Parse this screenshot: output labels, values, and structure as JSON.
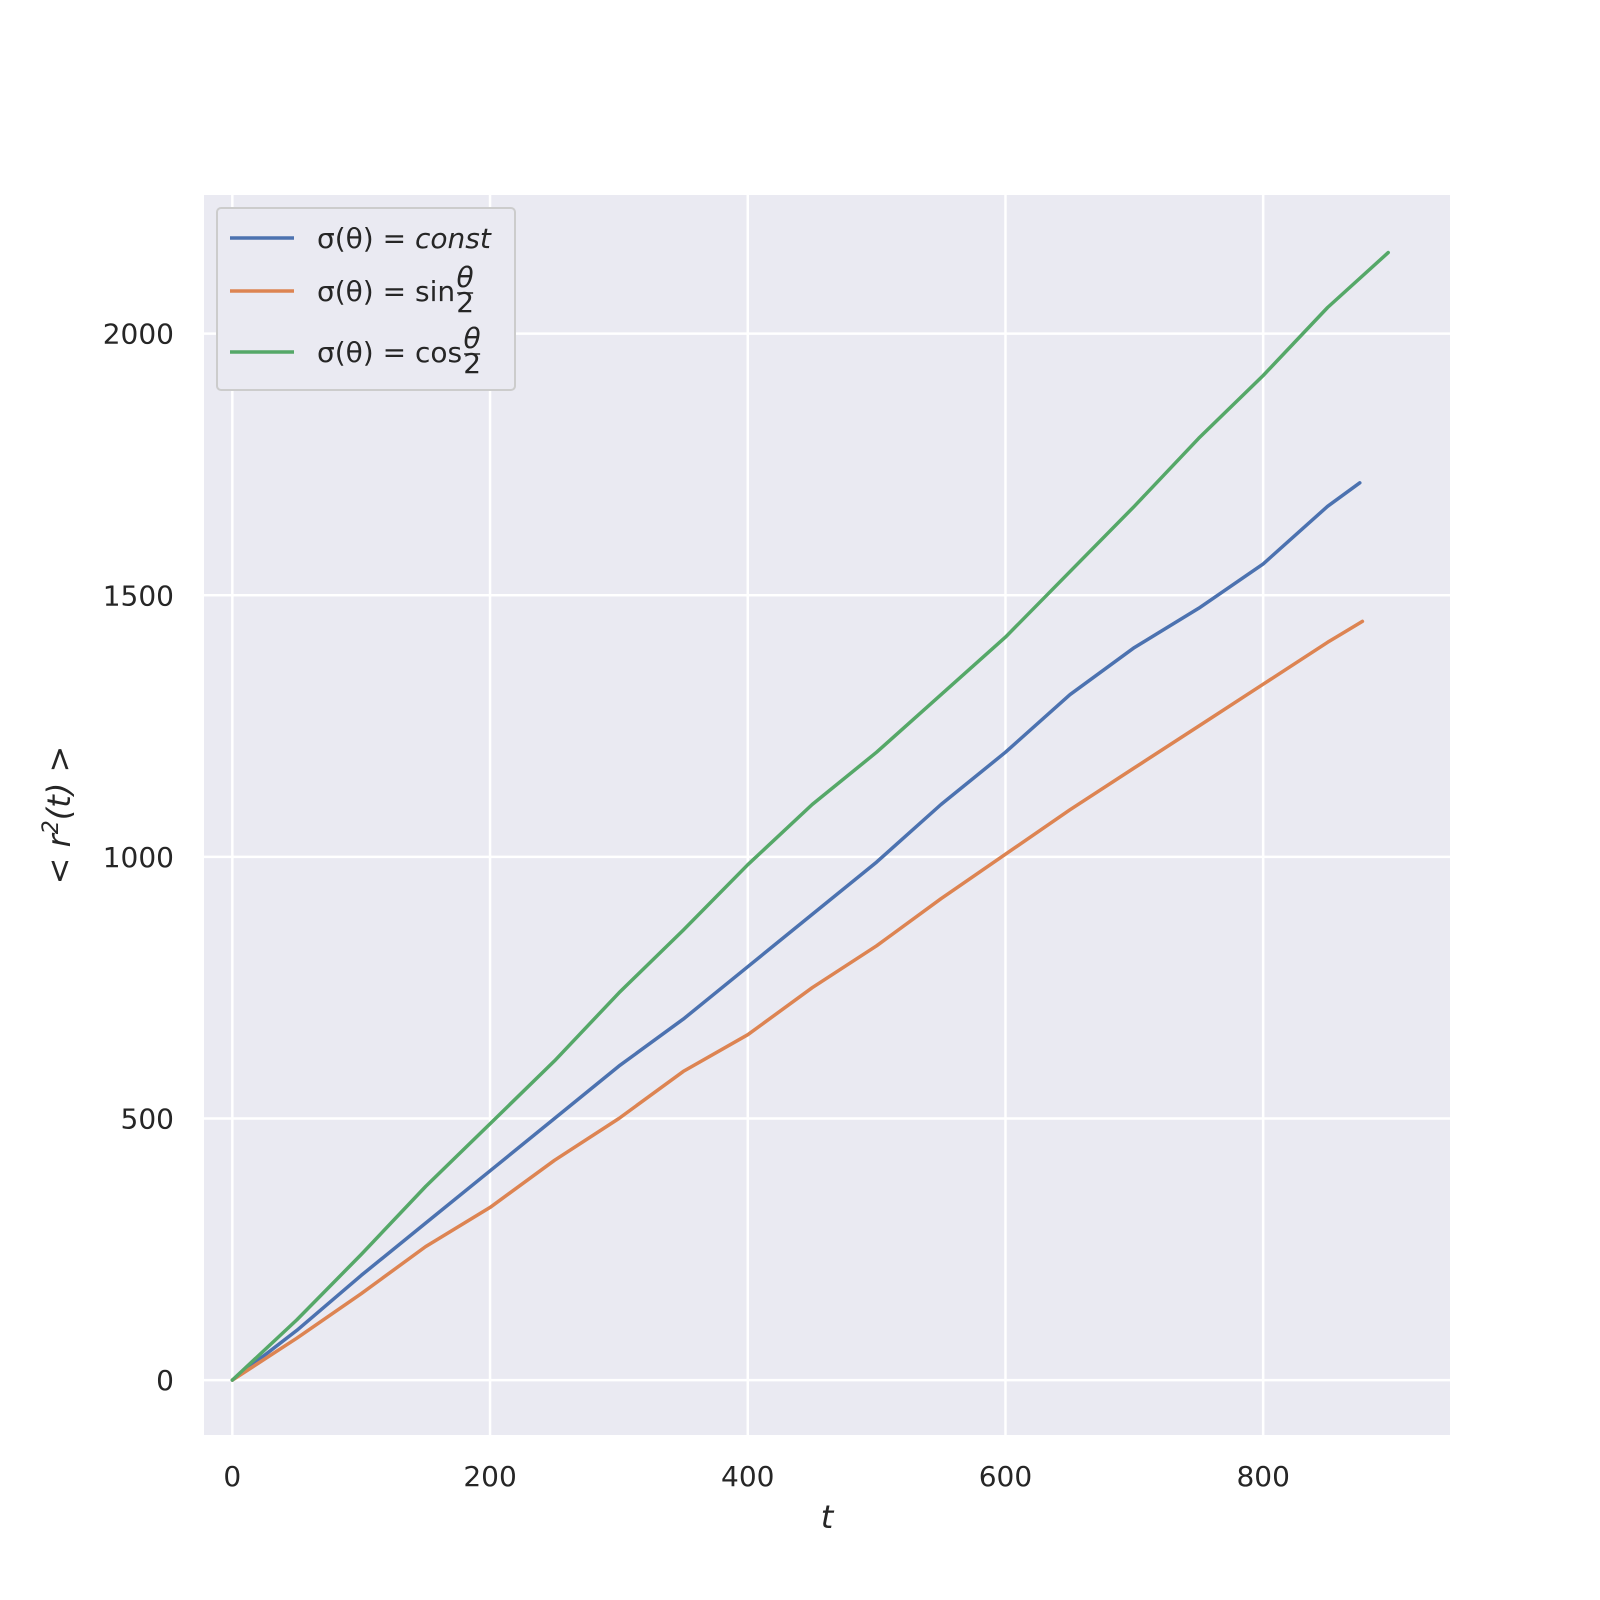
{
  "chart_data": {
    "type": "line",
    "xlabel": "t",
    "ylabel": "< r²(t) >",
    "title": "",
    "xlim": [
      -22,
      945
    ],
    "ylim": [
      -105,
      2265
    ],
    "xticks": [
      0,
      200,
      400,
      600,
      800
    ],
    "yticks": [
      0,
      500,
      1000,
      1500,
      2000
    ],
    "xtick_labels": [
      "0",
      "200",
      "400",
      "600",
      "800"
    ],
    "ytick_labels": [
      "0",
      "500",
      "1000",
      "1500",
      "2000"
    ],
    "grid": true,
    "background": "#eaeaf2",
    "legend_position": "upper-left",
    "series": [
      {
        "name": "σ(θ) = const",
        "legend": {
          "prefix": "σ(θ) = ",
          "suffix": "const",
          "frac": null
        },
        "color": "#4c72b0",
        "x": [
          0,
          50,
          100,
          150,
          200,
          250,
          300,
          350,
          400,
          450,
          500,
          550,
          600,
          650,
          700,
          750,
          800,
          850,
          875
        ],
        "y": [
          0,
          95,
          200,
          300,
          400,
          500,
          600,
          690,
          790,
          890,
          990,
          1100,
          1200,
          1310,
          1400,
          1475,
          1560,
          1670,
          1715
        ]
      },
      {
        "name": "σ(θ) = sin(θ/2)",
        "legend": {
          "prefix": "σ(θ) = ",
          "suffix": "sin",
          "frac": [
            "θ",
            "2"
          ]
        },
        "color": "#dd8452",
        "x": [
          0,
          50,
          100,
          150,
          200,
          250,
          300,
          350,
          400,
          450,
          500,
          550,
          600,
          650,
          700,
          750,
          800,
          850,
          877
        ],
        "y": [
          0,
          80,
          165,
          255,
          330,
          420,
          500,
          590,
          660,
          750,
          830,
          920,
          1005,
          1090,
          1170,
          1250,
          1330,
          1410,
          1450
        ]
      },
      {
        "name": "σ(θ) = cos(θ/2)",
        "legend": {
          "prefix": "σ(θ) = ",
          "suffix": "cos",
          "frac": [
            "θ",
            "2"
          ]
        },
        "color": "#55a868",
        "x": [
          0,
          50,
          100,
          150,
          200,
          250,
          300,
          350,
          400,
          450,
          500,
          550,
          600,
          650,
          700,
          750,
          800,
          850,
          897
        ],
        "y": [
          0,
          115,
          240,
          370,
          490,
          610,
          740,
          860,
          985,
          1100,
          1200,
          1310,
          1420,
          1545,
          1670,
          1800,
          1920,
          2050,
          2155
        ]
      }
    ]
  }
}
